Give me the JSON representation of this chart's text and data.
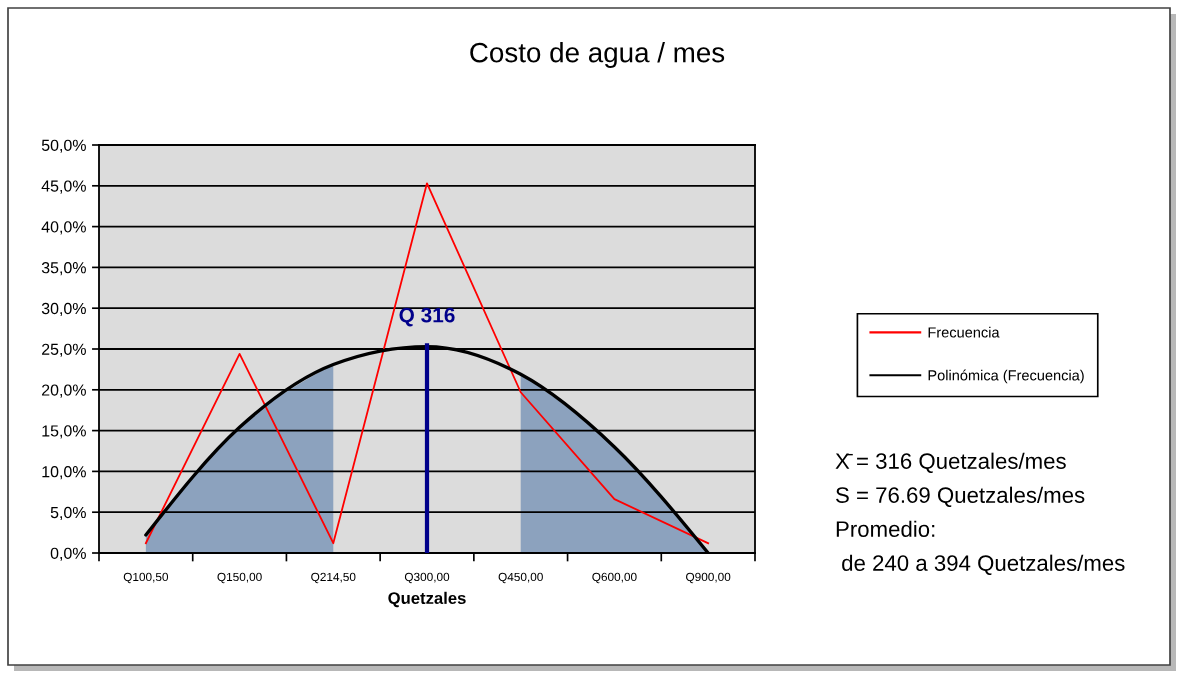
{
  "chart_data": {
    "type": "line",
    "title": "Costo de agua / mes",
    "xlabel": "Quetzales",
    "categories": [
      "Q100,50",
      "Q150,00",
      "Q214,50",
      "Q300,00",
      "Q450,00",
      "Q600,00",
      "Q900,00"
    ],
    "series": [
      {
        "type": "area",
        "color": "#8ca2be",
        "values": [
          2.2,
          15.4,
          23.1,
          null,
          null,
          null,
          null
        ]
      },
      {
        "type": "area",
        "color": "#8ca2be",
        "values": [
          null,
          null,
          null,
          null,
          21.9,
          13.0,
          0
        ]
      },
      {
        "name": "Frecuencia",
        "color": "#ff0000",
        "values": [
          1.2,
          24.4,
          1.2,
          45.3,
          19.7,
          6.6,
          1.2
        ]
      },
      {
        "name": "Polinómica (Frecuencia)",
        "color": "#000000",
        "values": [
          2.2,
          15.4,
          23.1,
          25.3,
          21.9,
          13.0,
          0
        ]
      },
      {
        "type": "bar",
        "color": "#00008b",
        "values": [
          null,
          null,
          null,
          25.7,
          null,
          null,
          null
        ],
        "value_labels": [
          null,
          null,
          null,
          "Q 316",
          null,
          null,
          null
        ]
      }
    ],
    "ylim": [
      0,
      50
    ],
    "yticks": [
      {
        "value": 0,
        "label": "0,0%"
      },
      {
        "value": 5,
        "label": "5,0%"
      },
      {
        "value": 10,
        "label": "10,0%"
      },
      {
        "value": 15,
        "label": "15,0%"
      },
      {
        "value": 20,
        "label": "20,0%"
      },
      {
        "value": 25,
        "label": "25,0%"
      },
      {
        "value": 30,
        "label": "30,0%"
      },
      {
        "value": 35,
        "label": "35,0%"
      },
      {
        "value": 40,
        "label": "40,0%"
      },
      {
        "value": 45,
        "label": "45,0%"
      },
      {
        "value": 50,
        "label": "50,0%"
      }
    ],
    "grid": "y",
    "legend": "right",
    "annotations": [
      "X̄ = 316 Quetzales/mes",
      "S = 76.69 Quetzales/mes",
      "Promedio:",
      " de 240 a 394 Quetzales/mes"
    ]
  }
}
